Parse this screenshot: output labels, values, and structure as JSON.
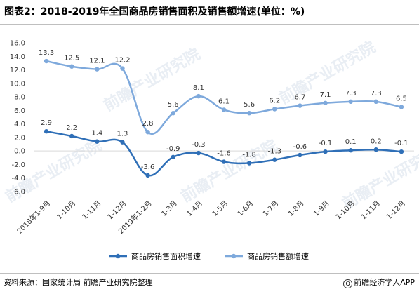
{
  "title": "图表2：2018-2019年全国商品房销售面积及销售额增速(单位：%)",
  "source": "资料来源：国家统计局 前瞻产业研究院整理",
  "brand": "前瞻经济学人APP",
  "brand_icon": "qianzhan-logo-icon",
  "watermark": "前瞻产业研究院",
  "colors": {
    "area_series": "#2f6fb7",
    "sales_series": "#7ea9dc",
    "axis": "#d9d9d9",
    "text": "#333333"
  },
  "chart_data": {
    "type": "line",
    "categories": [
      "2018年1-9月",
      "1-10月",
      "1-11月",
      "1-12月",
      "2019年1-2月",
      "1-3月",
      "1-4月",
      "1-5月",
      "1-6月",
      "1-7月",
      "1-8月",
      "1-9月",
      "1-10月",
      "1-11月",
      "1-12月"
    ],
    "series": [
      {
        "name": "商品房销售面积增速",
        "color": "#2f6fb7",
        "values": [
          2.9,
          2.2,
          1.4,
          1.3,
          -3.6,
          -0.9,
          -0.3,
          -1.6,
          -1.8,
          -1.3,
          -0.6,
          -0.1,
          0.1,
          0.2,
          -0.1
        ],
        "labels": [
          "2.9",
          "2.2",
          "1.4",
          "1.3",
          "-3.6",
          "-0.9",
          "-0.3",
          "-1.6",
          "-1.8",
          "-1.3",
          "-0.6",
          "-0.1",
          "0.1",
          "0.2",
          "-0.1"
        ]
      },
      {
        "name": "商品房销售额增速",
        "color": "#7ea9dc",
        "values": [
          13.3,
          12.5,
          12.1,
          12.2,
          2.8,
          5.6,
          8.1,
          6.1,
          5.6,
          6.2,
          6.7,
          7.1,
          7.3,
          7.3,
          6.5
        ],
        "labels": [
          "13.3",
          "12.5",
          "12.1",
          "12.2",
          "2.8",
          "5.6",
          "8.1",
          "6.1",
          "5.6",
          "6.2",
          "6.7",
          "7.1",
          "7.3",
          "7.3",
          "6.5"
        ]
      }
    ],
    "yticks": [
      "16.0",
      "14.0",
      "12.0",
      "10.0",
      "8.0",
      "6.0",
      "4.0",
      "2.0",
      "0.0",
      "-2.0",
      "-4.0",
      "-6.0"
    ],
    "ylim": [
      -6,
      16
    ],
    "legend": "bottom",
    "grid": false,
    "smooth": true
  }
}
